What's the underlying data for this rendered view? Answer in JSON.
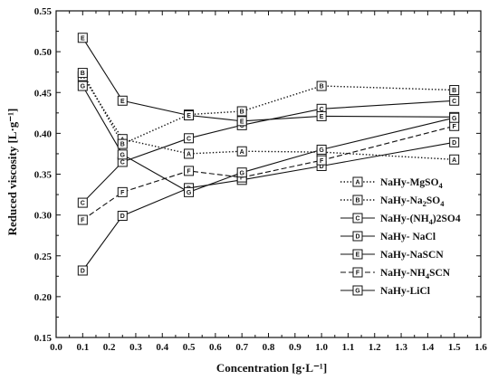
{
  "chart_data": {
    "type": "line",
    "title": "",
    "xlabel": "Concentration [g·L⁻¹]",
    "ylabel": "Reduced viscosity [L·g⁻¹]",
    "xlim": [
      0.0,
      1.6
    ],
    "ylim": [
      0.15,
      0.55
    ],
    "xticks": [
      "0.0",
      "0.1",
      "0.2",
      "0.3",
      "0.4",
      "0.5",
      "0.6",
      "0.7",
      "0.8",
      "0.9",
      "1.0",
      "1.1",
      "1.2",
      "1.3",
      "1.4",
      "1.5",
      "1.6"
    ],
    "yticks": [
      "0.15",
      "0.20",
      "0.25",
      "0.30",
      "0.35",
      "0.40",
      "0.45",
      "0.50",
      "0.55"
    ],
    "grid": false,
    "legend_position": "bottom-right",
    "series": [
      {
        "name": "NaHy-MgSO4",
        "name_main": "NaHy-MgSO",
        "name_sub": "4",
        "name_tail": "",
        "marker": "A",
        "dash": "dotted",
        "x": [
          0.1,
          0.25,
          0.5,
          0.7,
          1.0,
          1.5
        ],
        "y": [
          0.47,
          0.393,
          0.375,
          0.378,
          0.377,
          0.368
        ]
      },
      {
        "name": "NaHy-Na2SO4",
        "name_main": "NaHy-Na",
        "name_sub": "2",
        "name_tail": "SO4",
        "name_tail_main": "SO",
        "name_tail_sub": "4",
        "marker": "B",
        "dash": "dotted",
        "x": [
          0.1,
          0.25,
          0.5,
          0.7,
          1.0,
          1.5
        ],
        "y": [
          0.474,
          0.387,
          0.423,
          0.427,
          0.458,
          0.453
        ]
      },
      {
        "name": "NaHy-(NH4)2SO4",
        "name_main": "NaHy-(NH",
        "name_sub": "4",
        "name_tail": ")2SO4",
        "marker": "C",
        "dash": "solid",
        "x": [
          0.1,
          0.25,
          0.5,
          0.7,
          1.0,
          1.5
        ],
        "y": [
          0.315,
          0.365,
          0.394,
          0.41,
          0.43,
          0.44
        ]
      },
      {
        "name": "NaHy- NaCl",
        "name_main": "NaHy- NaCl",
        "name_sub": "",
        "name_tail": "",
        "marker": "D",
        "dash": "solid",
        "x": [
          0.1,
          0.25,
          0.5,
          0.7,
          1.0,
          1.5
        ],
        "y": [
          0.232,
          0.299,
          0.333,
          0.343,
          0.36,
          0.389
        ]
      },
      {
        "name": "NaHy-NaSCN",
        "name_main": "NaHy-NaSCN",
        "name_sub": "",
        "name_tail": "",
        "marker": "E",
        "dash": "solid",
        "x": [
          0.1,
          0.25,
          0.5,
          0.7,
          1.0,
          1.5
        ],
        "y": [
          0.517,
          0.44,
          0.422,
          0.415,
          0.421,
          0.42
        ]
      },
      {
        "name": "NaHy-NH4SCN",
        "name_main": "NaHy-NH",
        "name_sub": "4",
        "name_tail": "SCN",
        "marker": "F",
        "dash": "dashed",
        "x": [
          0.1,
          0.25,
          0.5,
          0.7,
          1.0,
          1.5
        ],
        "y": [
          0.294,
          0.328,
          0.354,
          0.346,
          0.367,
          0.409
        ]
      },
      {
        "name": "NaHy-LiCl",
        "name_main": "NaHy-LiCl",
        "name_sub": "",
        "name_tail": "",
        "marker": "G",
        "dash": "solid",
        "x": [
          0.1,
          0.25,
          0.5,
          0.7,
          1.0,
          1.5
        ],
        "y": [
          0.458,
          0.374,
          0.328,
          0.352,
          0.38,
          0.419
        ]
      }
    ]
  }
}
